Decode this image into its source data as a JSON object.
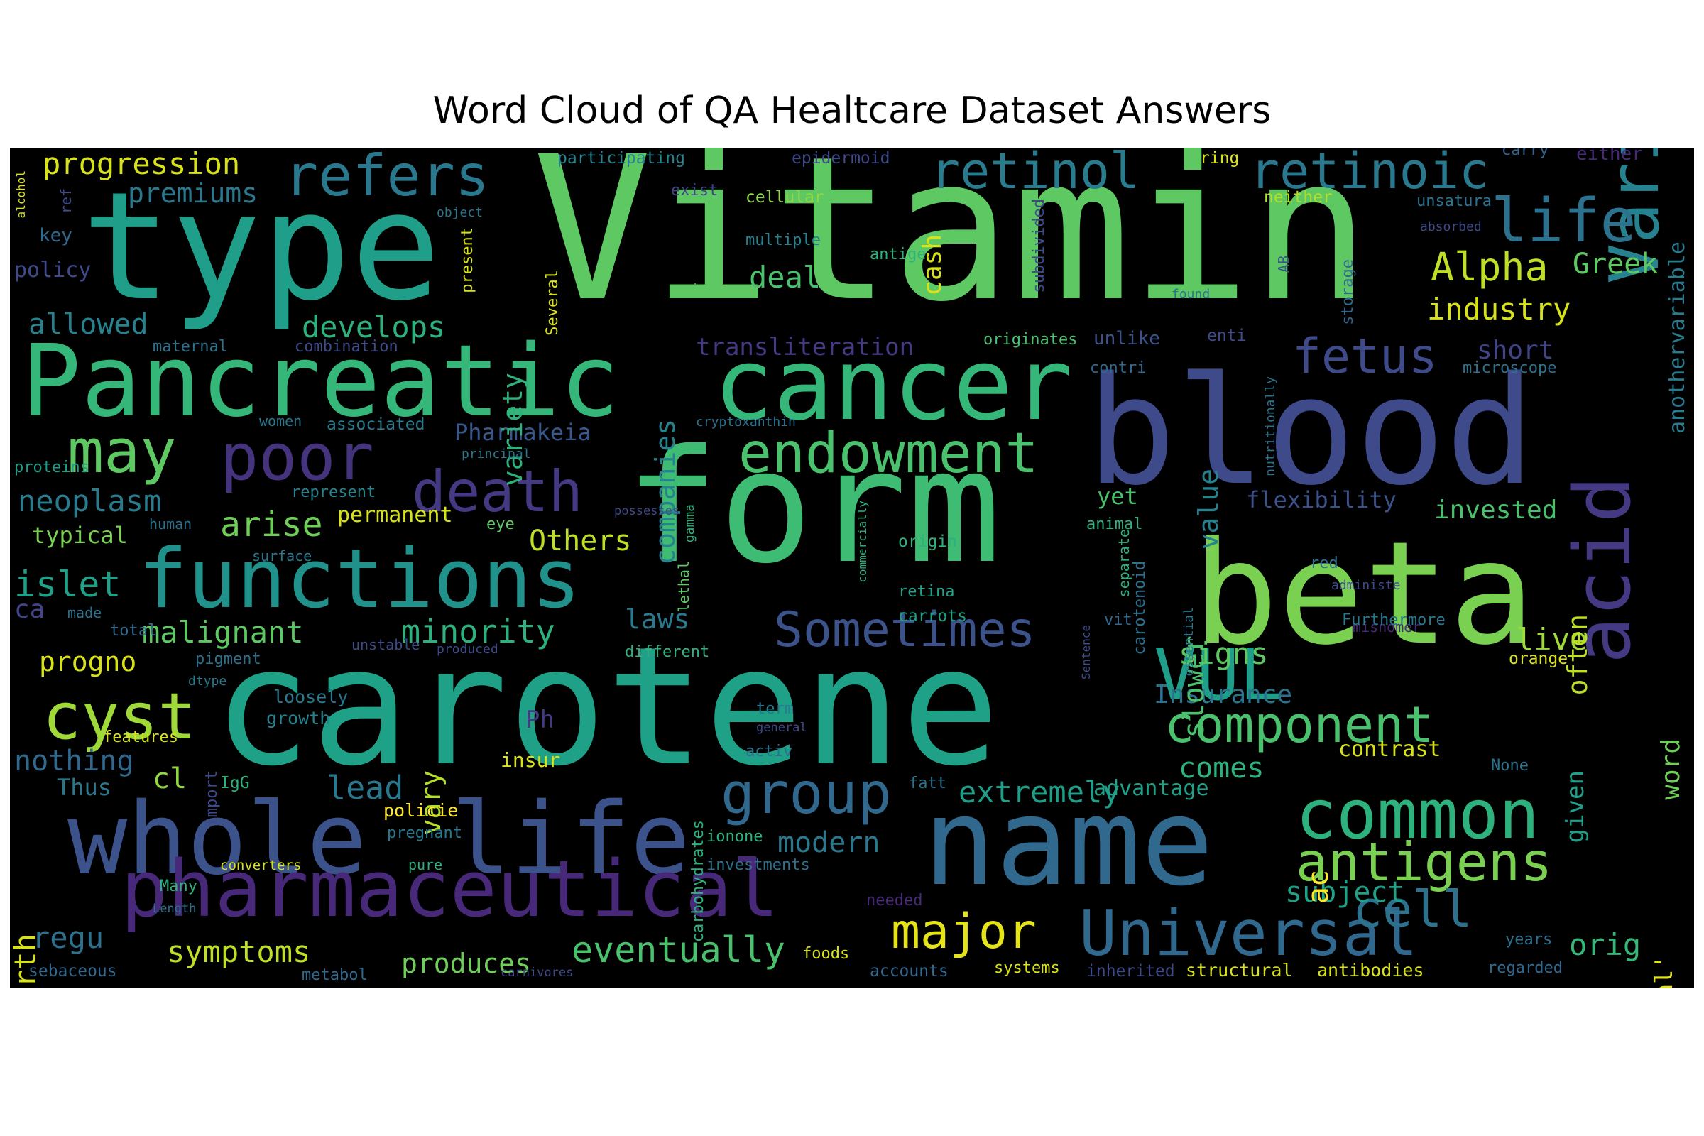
{
  "chart_data": {
    "type": "wordcloud",
    "title": "Word Cloud of QA Healtcare Dataset Answers",
    "background": "#000000",
    "colormap": "viridis",
    "words": [
      {
        "text": "Vitamin",
        "color": "#5ec962"
      },
      {
        "text": "carotene",
        "color": "#1fa187"
      },
      {
        "text": "form",
        "color": "#3fbc73"
      },
      {
        "text": "blood",
        "color": "#3e4a89"
      },
      {
        "text": "type",
        "color": "#1f9e89"
      },
      {
        "text": "beta",
        "color": "#7ad151"
      },
      {
        "text": "Pancreatic",
        "color": "#35b779"
      },
      {
        "text": "cancer",
        "color": "#35b779"
      },
      {
        "text": "name",
        "color": "#31688e"
      },
      {
        "text": "whole",
        "color": "#3b528b"
      },
      {
        "text": "life",
        "color": "#3b528b"
      },
      {
        "text": "pharmaceutical",
        "color": "#482878"
      },
      {
        "text": "functions",
        "color": "#21918c"
      },
      {
        "text": "Variable",
        "color": "#26828e"
      },
      {
        "text": "acid",
        "color": "#443983"
      },
      {
        "text": "Universal",
        "color": "#31688e"
      },
      {
        "text": "VUL",
        "color": "#1f9e89"
      },
      {
        "text": "refers",
        "color": "#2a788e"
      },
      {
        "text": "retinol",
        "color": "#287c8e"
      },
      {
        "text": "retinoic",
        "color": "#2a788e"
      },
      {
        "text": "life",
        "color": "#2c728e"
      },
      {
        "text": "component",
        "color": "#4ac16d"
      },
      {
        "text": "common",
        "color": "#2db27d"
      },
      {
        "text": "antigens",
        "color": "#7ad151"
      },
      {
        "text": "endowment",
        "color": "#4ac16d"
      },
      {
        "text": "death",
        "color": "#443983"
      },
      {
        "text": "poor",
        "color": "#46337e"
      },
      {
        "text": "Sometimes",
        "color": "#3b528b"
      },
      {
        "text": "fetus",
        "color": "#3e4a89"
      },
      {
        "text": "may",
        "color": "#5ec962"
      },
      {
        "text": "group",
        "color": "#31688e"
      },
      {
        "text": "major",
        "color": "#e5e419"
      },
      {
        "text": "cyst",
        "color": "#a0da39"
      },
      {
        "text": "cell",
        "color": "#2c728e"
      },
      {
        "text": "Alpha",
        "color": "#bddf26"
      },
      {
        "text": "Greek",
        "color": "#5ec962"
      },
      {
        "text": "progression",
        "color": "#d8e219"
      },
      {
        "text": "premiums",
        "color": "#2a788e"
      },
      {
        "text": "allowed",
        "color": "#26828e"
      },
      {
        "text": "develops",
        "color": "#2db27d"
      },
      {
        "text": "neoplasm",
        "color": "#287c8e"
      },
      {
        "text": "arise",
        "color": "#6ece58"
      },
      {
        "text": "Pharmakeia",
        "color": "#38588c"
      },
      {
        "text": "islet",
        "color": "#1fa187"
      },
      {
        "text": "malignant",
        "color": "#5ec962"
      },
      {
        "text": "minority",
        "color": "#2db27d"
      },
      {
        "text": "eventually",
        "color": "#4ac16d"
      },
      {
        "text": "symptoms",
        "color": "#bddf26"
      },
      {
        "text": "produces",
        "color": "#6ece58"
      },
      {
        "text": "extremely",
        "color": "#1f9e89"
      },
      {
        "text": "modern",
        "color": "#2a788e"
      },
      {
        "text": "fourth",
        "color": "#d8e219"
      },
      {
        "text": "regu",
        "color": "#2c728e"
      },
      {
        "text": "nothing",
        "color": "#31688e"
      },
      {
        "text": "progno",
        "color": "#d8e219"
      },
      {
        "text": "lead",
        "color": "#2a788e"
      },
      {
        "text": "Others",
        "color": "#bddf26"
      },
      {
        "text": "industry",
        "color": "#d8e219"
      },
      {
        "text": "deal",
        "color": "#4ac16d"
      },
      {
        "text": "companies",
        "color": "#26828e"
      },
      {
        "text": "variety",
        "color": "#2db27d"
      },
      {
        "text": "transliteration",
        "color": "#443983"
      },
      {
        "text": "short",
        "color": "#414487"
      },
      {
        "text": "flexibility",
        "color": "#3b528b"
      },
      {
        "text": "invested",
        "color": "#4ac16d"
      },
      {
        "text": "signs",
        "color": "#5ec962"
      },
      {
        "text": "Insurance",
        "color": "#2c728e"
      },
      {
        "text": "comes",
        "color": "#2db27d"
      },
      {
        "text": "subject",
        "color": "#1fa187"
      },
      {
        "text": "live",
        "color": "#a0da39"
      },
      {
        "text": "orig",
        "color": "#35b779"
      },
      {
        "text": "word",
        "color": "#6ece58"
      },
      {
        "text": "given",
        "color": "#1f9e89"
      },
      {
        "text": "often",
        "color": "#bddf26"
      },
      {
        "text": "universal'",
        "color": "#e5e419"
      },
      {
        "text": "slower",
        "color": "#4ac16d"
      },
      {
        "text": "value",
        "color": "#26828e"
      },
      {
        "text": "laws",
        "color": "#2a788e"
      },
      {
        "text": "cash",
        "color": "#d8e219"
      },
      {
        "text": "contrast",
        "color": "#d8e219"
      },
      {
        "text": "advantage",
        "color": "#1fa187"
      },
      {
        "text": "yet",
        "color": "#4ac16d"
      },
      {
        "text": "typical",
        "color": "#7ad151"
      },
      {
        "text": "permanent",
        "color": "#d8e219"
      },
      {
        "text": "vary",
        "color": "#b5de2b"
      },
      {
        "text": "cl",
        "color": "#90d743"
      },
      {
        "text": "Thus",
        "color": "#2a788e"
      },
      {
        "text": "insur",
        "color": "#d8e219"
      },
      {
        "text": "policie",
        "color": "#fde725"
      },
      {
        "text": "ac",
        "color": "#fde725"
      },
      {
        "text": "ca",
        "color": "#414487"
      },
      {
        "text": "Ph",
        "color": "#443983"
      },
      {
        "text": "policy",
        "color": "#3e4a89"
      },
      {
        "text": "key",
        "color": "#31688e"
      },
      {
        "text": "participating",
        "color": "#26828e"
      },
      {
        "text": "epidermoid",
        "color": "#3e4a89"
      },
      {
        "text": "ring",
        "color": "#d8e219"
      },
      {
        "text": "carry",
        "color": "#33638d"
      },
      {
        "text": "either",
        "color": "#482878"
      },
      {
        "text": "exist",
        "color": "#414487"
      },
      {
        "text": "cellular",
        "color": "#8fd744"
      },
      {
        "text": "neither",
        "color": "#b5de2b"
      },
      {
        "text": "unsatura",
        "color": "#2c728e"
      },
      {
        "text": "absorbed",
        "color": "#3e4a89"
      },
      {
        "text": "multiple",
        "color": "#26828e"
      },
      {
        "text": "antige",
        "color": "#2db27d"
      },
      {
        "text": "two",
        "color": "#5ec962"
      },
      {
        "text": "found",
        "color": "#2c728e"
      },
      {
        "text": "AB",
        "color": "#38588c"
      },
      {
        "text": "storage",
        "color": "#31688e"
      },
      {
        "text": "anothervariable",
        "color": "#287c8e"
      },
      {
        "text": "maternal",
        "color": "#2c728e"
      },
      {
        "text": "combination",
        "color": "#3e4a89"
      },
      {
        "text": "originates",
        "color": "#4ac16d"
      },
      {
        "text": "unlike",
        "color": "#3b528b"
      },
      {
        "text": "enti",
        "color": "#3e4a89"
      },
      {
        "text": "contri",
        "color": "#31688e"
      },
      {
        "text": "microscope",
        "color": "#2c728e"
      },
      {
        "text": "women",
        "color": "#2a788e"
      },
      {
        "text": "associated",
        "color": "#287c8e"
      },
      {
        "text": "cryptoxanthin",
        "color": "#2c728e"
      },
      {
        "text": "principal",
        "color": "#2a788e"
      },
      {
        "text": "proteins",
        "color": "#1f9e89"
      },
      {
        "text": "represent",
        "color": "#26828e"
      },
      {
        "text": "possesses",
        "color": "#3e4a89"
      },
      {
        "text": "human",
        "color": "#2c728e"
      },
      {
        "text": "eye",
        "color": "#5ec962"
      },
      {
        "text": "animal",
        "color": "#2db27d"
      },
      {
        "text": "surface",
        "color": "#2a788e"
      },
      {
        "text": "origin",
        "color": "#2db27d"
      },
      {
        "text": "retina",
        "color": "#1fa187"
      },
      {
        "text": "carrots",
        "color": "#1fa187"
      },
      {
        "text": "carotenoid",
        "color": "#2c728e"
      },
      {
        "text": "red",
        "color": "#2c728e"
      },
      {
        "text": "essential",
        "color": "#2a788e"
      },
      {
        "text": "administe",
        "color": "#3e4a89"
      },
      {
        "text": "gamma",
        "color": "#2db27d"
      },
      {
        "text": "lethal",
        "color": "#5ec962"
      },
      {
        "text": "separate",
        "color": "#2db27d"
      },
      {
        "text": "vit",
        "color": "#31688e"
      },
      {
        "text": "made",
        "color": "#2c728e"
      },
      {
        "text": "total",
        "color": "#31688e"
      },
      {
        "text": "pigment",
        "color": "#2c728e"
      },
      {
        "text": "dtype",
        "color": "#2a788e"
      },
      {
        "text": "unstable",
        "color": "#3e4a89"
      },
      {
        "text": "produced",
        "color": "#3e4a89"
      },
      {
        "text": "different",
        "color": "#2db27d"
      },
      {
        "text": "misnomer",
        "color": "#482878"
      },
      {
        "text": "Furthermore",
        "color": "#2a788e"
      },
      {
        "text": "orange",
        "color": "#d8e219"
      },
      {
        "text": "loosely",
        "color": "#2a788e"
      },
      {
        "text": "growth",
        "color": "#26828e"
      },
      {
        "text": "features",
        "color": "#d8e219"
      },
      {
        "text": "import",
        "color": "#3e4a89"
      },
      {
        "text": "IgG",
        "color": "#2db27d"
      },
      {
        "text": "carbohydrates",
        "color": "#2db27d"
      },
      {
        "text": "term",
        "color": "#2a788e"
      },
      {
        "text": "general",
        "color": "#3e4a89"
      },
      {
        "text": "activ",
        "color": "#2c728e"
      },
      {
        "text": "fatt",
        "color": "#2c728e"
      },
      {
        "text": "None",
        "color": "#2c728e"
      },
      {
        "text": "pregnant",
        "color": "#2a788e"
      },
      {
        "text": "ionone",
        "color": "#2db27d"
      },
      {
        "text": "converters",
        "color": "#d8e219"
      },
      {
        "text": "pure",
        "color": "#2db27d"
      },
      {
        "text": "investments",
        "color": "#2c728e"
      },
      {
        "text": "Many",
        "color": "#2db27d"
      },
      {
        "text": "Length",
        "color": "#2c728e"
      },
      {
        "text": "needed",
        "color": "#482878"
      },
      {
        "text": "sebaceous",
        "color": "#31688e"
      },
      {
        "text": "metabol",
        "color": "#31688e"
      },
      {
        "text": "carnivores",
        "color": "#3e4a89"
      },
      {
        "text": "foods",
        "color": "#d8e219"
      },
      {
        "text": "accounts",
        "color": "#31688e"
      },
      {
        "text": "systems",
        "color": "#d8e219"
      },
      {
        "text": "inherited",
        "color": "#3e4a89"
      },
      {
        "text": "structural",
        "color": "#d8e219"
      },
      {
        "text": "antibodies",
        "color": "#d8e219"
      },
      {
        "text": "regarded",
        "color": "#31688e"
      },
      {
        "text": "years",
        "color": "#2c728e"
      },
      {
        "text": "commercially",
        "color": "#2db27d"
      },
      {
        "text": "nutritionally",
        "color": "#2c728e"
      },
      {
        "text": "subdivided",
        "color": "#3e4a89"
      },
      {
        "text": "Sentence",
        "color": "#3e4a89"
      },
      {
        "text": "Several",
        "color": "#d8e219"
      },
      {
        "text": "present",
        "color": "#d8e219"
      },
      {
        "text": "object",
        "color": "#2a788e"
      },
      {
        "text": "alcohol",
        "color": "#d8e219"
      },
      {
        "text": "ref",
        "color": "#3e4a89"
      }
    ]
  }
}
